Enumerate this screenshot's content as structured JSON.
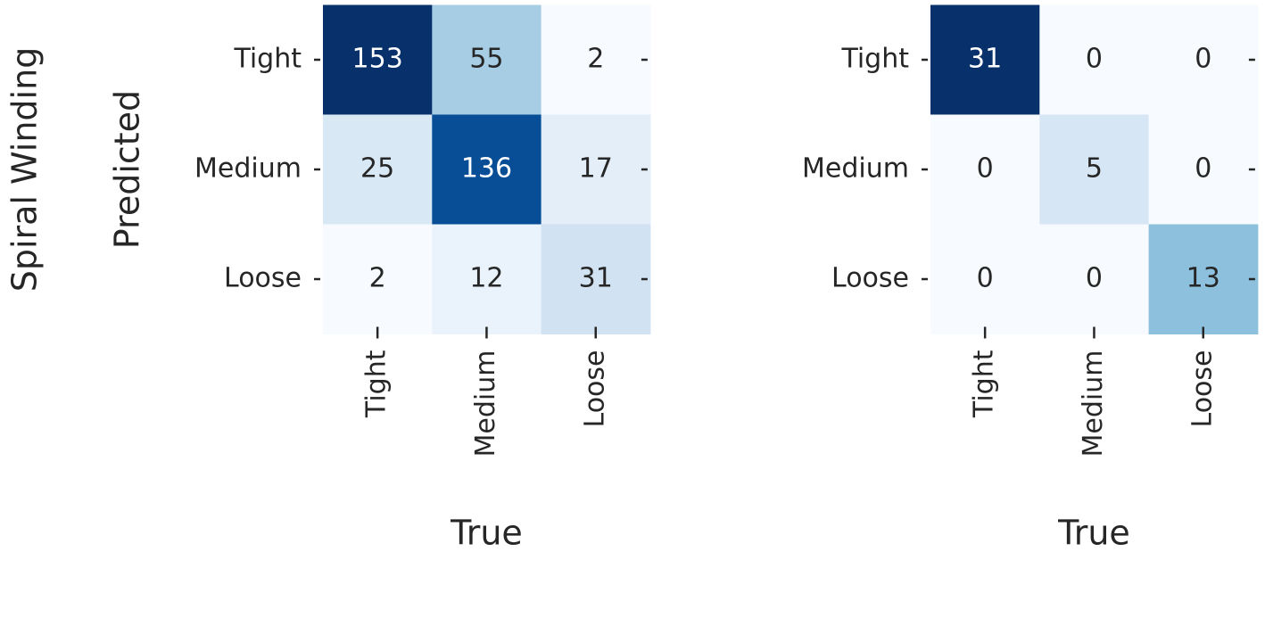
{
  "row_title": "Spiral Winding",
  "chart_data": [
    {
      "type": "heatmap",
      "colormap": "Blues",
      "ylabel": "Predicted",
      "xlabel": "True",
      "x_categories": [
        "Tight",
        "Medium",
        "Loose"
      ],
      "y_categories": [
        "Tight",
        "Medium",
        "Loose"
      ],
      "values": [
        [
          153,
          55,
          2
        ],
        [
          25,
          136,
          17
        ],
        [
          2,
          12,
          31
        ]
      ]
    },
    {
      "type": "heatmap",
      "colormap": "Blues",
      "xlabel": "True",
      "x_categories": [
        "Tight",
        "Medium",
        "Loose"
      ],
      "y_categories": [
        "Tight",
        "Medium",
        "Loose"
      ],
      "values": [
        [
          31,
          0,
          0
        ],
        [
          0,
          5,
          0
        ],
        [
          0,
          0,
          13
        ]
      ]
    }
  ]
}
